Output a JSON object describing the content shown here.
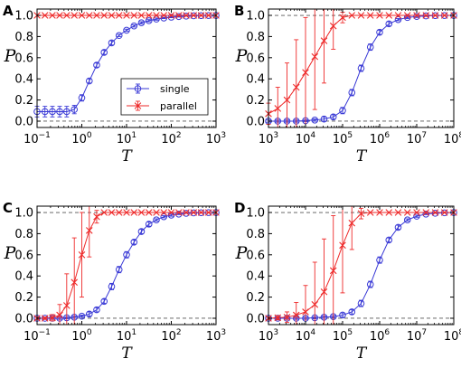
{
  "style": {
    "single_color": "#3a3ad6",
    "parallel_color": "#ee2a2a"
  },
  "legend": {
    "single": "single",
    "parallel": "parallel",
    "placement": "panel A, lower right"
  },
  "chart_data": [
    {
      "panel": "A",
      "type": "line",
      "xscale": "log",
      "xlim": [
        0.1,
        1000
      ],
      "ylim": [
        -0.06,
        1.06
      ],
      "xlabel": "T",
      "ylabel": "P",
      "xtick_exponents": [
        -1,
        0,
        1,
        2,
        3
      ],
      "ytick_labels": [
        "0.0",
        "0.2",
        "0.4",
        "0.6",
        "0.8",
        "1.0"
      ],
      "reference_lines": [
        0,
        1
      ],
      "series": [
        {
          "name": "single",
          "marker": "circle",
          "x": [
            0.1,
            0.15,
            0.22,
            0.32,
            0.46,
            0.68,
            1,
            1.47,
            2.15,
            3.16,
            4.64,
            6.81,
            10,
            14.7,
            21.5,
            31.6,
            46.4,
            68.1,
            100,
            147,
            215,
            316,
            464,
            681,
            1000
          ],
          "y": [
            0.09,
            0.09,
            0.09,
            0.09,
            0.09,
            0.11,
            0.22,
            0.38,
            0.53,
            0.65,
            0.74,
            0.81,
            0.86,
            0.9,
            0.93,
            0.95,
            0.965,
            0.975,
            0.983,
            0.989,
            0.993,
            0.996,
            0.998,
            0.999,
            1.0
          ],
          "err": [
            0.05,
            0.05,
            0.05,
            0.05,
            0.05,
            0.04,
            0.03,
            0.02,
            0.02,
            0.02,
            0.02,
            0.01,
            0.01,
            0.01,
            0.01,
            0.01,
            0.01,
            0.005,
            0.005,
            0.005,
            0.003,
            0.003,
            0.002,
            0.001,
            0.001
          ]
        },
        {
          "name": "parallel",
          "marker": "x",
          "x": [
            0.1,
            0.15,
            0.22,
            0.32,
            0.46,
            0.68,
            1,
            1.47,
            2.15,
            3.16,
            4.64,
            6.81,
            10,
            14.7,
            21.5,
            31.6,
            46.4,
            68.1,
            100,
            147,
            215,
            316,
            464,
            681,
            1000
          ],
          "y": [
            1,
            1,
            1,
            1,
            1,
            1,
            1,
            1,
            1,
            1,
            1,
            1,
            1,
            1,
            1,
            1,
            1,
            1,
            1,
            1,
            1,
            1,
            1,
            1,
            1
          ],
          "err": [
            0,
            0,
            0,
            0,
            0,
            0,
            0,
            0,
            0,
            0,
            0,
            0,
            0,
            0,
            0,
            0,
            0,
            0,
            0,
            0,
            0,
            0,
            0,
            0,
            0
          ]
        }
      ]
    },
    {
      "panel": "B",
      "type": "line",
      "xscale": "log",
      "xlim": [
        1000,
        100000000
      ],
      "ylim": [
        -0.06,
        1.06
      ],
      "xlabel": "T",
      "ylabel": "P",
      "xtick_exponents": [
        3,
        4,
        5,
        6,
        7,
        8
      ],
      "ytick_labels": [
        "0.0",
        "0.2",
        "0.4",
        "0.6",
        "0.8",
        "1.0"
      ],
      "reference_lines": [
        0,
        1
      ],
      "series": [
        {
          "name": "single",
          "marker": "circle",
          "x": [
            1000,
            1780,
            3160,
            5620,
            10000,
            17800,
            31600,
            56200,
            100000,
            178000,
            316000,
            562000,
            1000000,
            1780000,
            3160000,
            5620000,
            10000000,
            17800000,
            31600000,
            56200000,
            100000000
          ],
          "y": [
            0,
            0,
            0,
            0,
            0.005,
            0.01,
            0.02,
            0.04,
            0.1,
            0.27,
            0.5,
            0.7,
            0.84,
            0.92,
            0.96,
            0.98,
            0.99,
            0.995,
            0.998,
            0.999,
            1.0
          ],
          "err": [
            0.01,
            0.01,
            0.01,
            0.01,
            0.01,
            0.01,
            0.02,
            0.02,
            0.03,
            0.03,
            0.03,
            0.03,
            0.02,
            0.02,
            0.01,
            0.01,
            0.01,
            0.005,
            0.003,
            0.002,
            0.001
          ]
        },
        {
          "name": "parallel",
          "marker": "x",
          "x": [
            1000,
            1780,
            3160,
            5620,
            10000,
            17800,
            31600,
            56200,
            100000,
            178000,
            316000,
            562000,
            1000000,
            1780000,
            3160000,
            5620000,
            10000000,
            17800000,
            31600000,
            56200000,
            100000000
          ],
          "y": [
            0.07,
            0.12,
            0.2,
            0.32,
            0.46,
            0.61,
            0.76,
            0.9,
            0.98,
            1,
            1,
            1,
            1,
            1,
            1,
            1,
            1,
            1,
            1,
            1,
            1
          ],
          "err": [
            0.1,
            0.2,
            0.35,
            0.45,
            0.52,
            0.5,
            0.4,
            0.22,
            0.05,
            0,
            0,
            0,
            0,
            0,
            0,
            0,
            0,
            0,
            0,
            0,
            0
          ]
        }
      ]
    },
    {
      "panel": "C",
      "type": "line",
      "xscale": "log",
      "xlim": [
        0.1,
        1000
      ],
      "ylim": [
        -0.06,
        1.06
      ],
      "xlabel": "T",
      "ylabel": "P",
      "xtick_exponents": [
        -1,
        0,
        1,
        2,
        3
      ],
      "ytick_labels": [
        "0.0",
        "0.2",
        "0.4",
        "0.6",
        "0.8",
        "1.0"
      ],
      "reference_lines": [
        0,
        1
      ],
      "series": [
        {
          "name": "single",
          "marker": "circle",
          "x": [
            0.1,
            0.15,
            0.22,
            0.32,
            0.46,
            0.68,
            1,
            1.47,
            2.15,
            3.16,
            4.64,
            6.81,
            10,
            14.7,
            21.5,
            31.6,
            46.4,
            68.1,
            100,
            147,
            215,
            316,
            464,
            681,
            1000
          ],
          "y": [
            0,
            0,
            0,
            0,
            0.005,
            0.01,
            0.02,
            0.04,
            0.08,
            0.16,
            0.3,
            0.46,
            0.6,
            0.72,
            0.82,
            0.89,
            0.93,
            0.96,
            0.975,
            0.985,
            0.992,
            0.996,
            0.998,
            0.999,
            1.0
          ],
          "err": [
            0.01,
            0.01,
            0.01,
            0.01,
            0.01,
            0.01,
            0.01,
            0.02,
            0.02,
            0.02,
            0.03,
            0.03,
            0.03,
            0.02,
            0.02,
            0.02,
            0.01,
            0.01,
            0.01,
            0.005,
            0.004,
            0.003,
            0.002,
            0.001,
            0.001
          ]
        },
        {
          "name": "parallel",
          "marker": "x",
          "x": [
            0.1,
            0.15,
            0.22,
            0.32,
            0.46,
            0.68,
            1,
            1.47,
            2.15,
            3.16,
            4.64,
            6.81,
            10,
            14.7,
            21.5,
            31.6,
            46.4,
            68.1,
            100,
            147,
            215,
            316,
            464,
            681,
            1000
          ],
          "y": [
            0,
            0,
            0.005,
            0.03,
            0.12,
            0.34,
            0.6,
            0.83,
            0.96,
            1,
            1,
            1,
            1,
            1,
            1,
            1,
            1,
            1,
            1,
            1,
            1,
            1,
            1,
            1,
            1
          ],
          "err": [
            0.01,
            0.01,
            0.03,
            0.1,
            0.3,
            0.42,
            0.4,
            0.25,
            0.06,
            0,
            0,
            0,
            0,
            0,
            0,
            0,
            0,
            0,
            0,
            0,
            0,
            0,
            0,
            0,
            0
          ]
        }
      ]
    },
    {
      "panel": "D",
      "type": "line",
      "xscale": "log",
      "xlim": [
        1000,
        100000000
      ],
      "ylim": [
        -0.06,
        1.06
      ],
      "xlabel": "T",
      "ylabel": "P",
      "xtick_exponents": [
        3,
        4,
        5,
        6,
        7,
        8
      ],
      "ytick_labels": [
        "0.0",
        "0.2",
        "0.4",
        "0.6",
        "0.8",
        "1.0"
      ],
      "reference_lines": [
        0,
        1
      ],
      "series": [
        {
          "name": "single",
          "marker": "circle",
          "x": [
            1000,
            1780,
            3160,
            5620,
            10000,
            17800,
            31600,
            56200,
            100000,
            178000,
            316000,
            562000,
            1000000,
            1780000,
            3160000,
            5620000,
            10000000,
            17800000,
            31600000,
            56200000,
            100000000
          ],
          "y": [
            0,
            0,
            0,
            0,
            0,
            0.005,
            0.01,
            0.015,
            0.03,
            0.06,
            0.14,
            0.32,
            0.55,
            0.74,
            0.86,
            0.93,
            0.965,
            0.985,
            0.993,
            0.997,
            1.0
          ],
          "err": [
            0.01,
            0.01,
            0.01,
            0.01,
            0.01,
            0.01,
            0.01,
            0.01,
            0.02,
            0.02,
            0.03,
            0.03,
            0.03,
            0.02,
            0.02,
            0.01,
            0.01,
            0.005,
            0.003,
            0.002,
            0.001
          ]
        },
        {
          "name": "parallel",
          "marker": "x",
          "x": [
            1000,
            1780,
            3160,
            5620,
            10000,
            17800,
            31600,
            56200,
            100000,
            178000,
            316000,
            562000,
            1000000,
            1780000,
            3160000,
            5620000,
            10000000,
            17800000,
            31600000,
            56200000,
            100000000
          ],
          "y": [
            0,
            0.005,
            0.01,
            0.03,
            0.06,
            0.13,
            0.25,
            0.45,
            0.69,
            0.9,
            0.99,
            1,
            1,
            1,
            1,
            1,
            1,
            1,
            1,
            1,
            1
          ],
          "err": [
            0.01,
            0.02,
            0.05,
            0.12,
            0.25,
            0.4,
            0.5,
            0.52,
            0.45,
            0.25,
            0.05,
            0,
            0,
            0,
            0,
            0,
            0,
            0,
            0,
            0,
            0
          ]
        }
      ]
    }
  ]
}
